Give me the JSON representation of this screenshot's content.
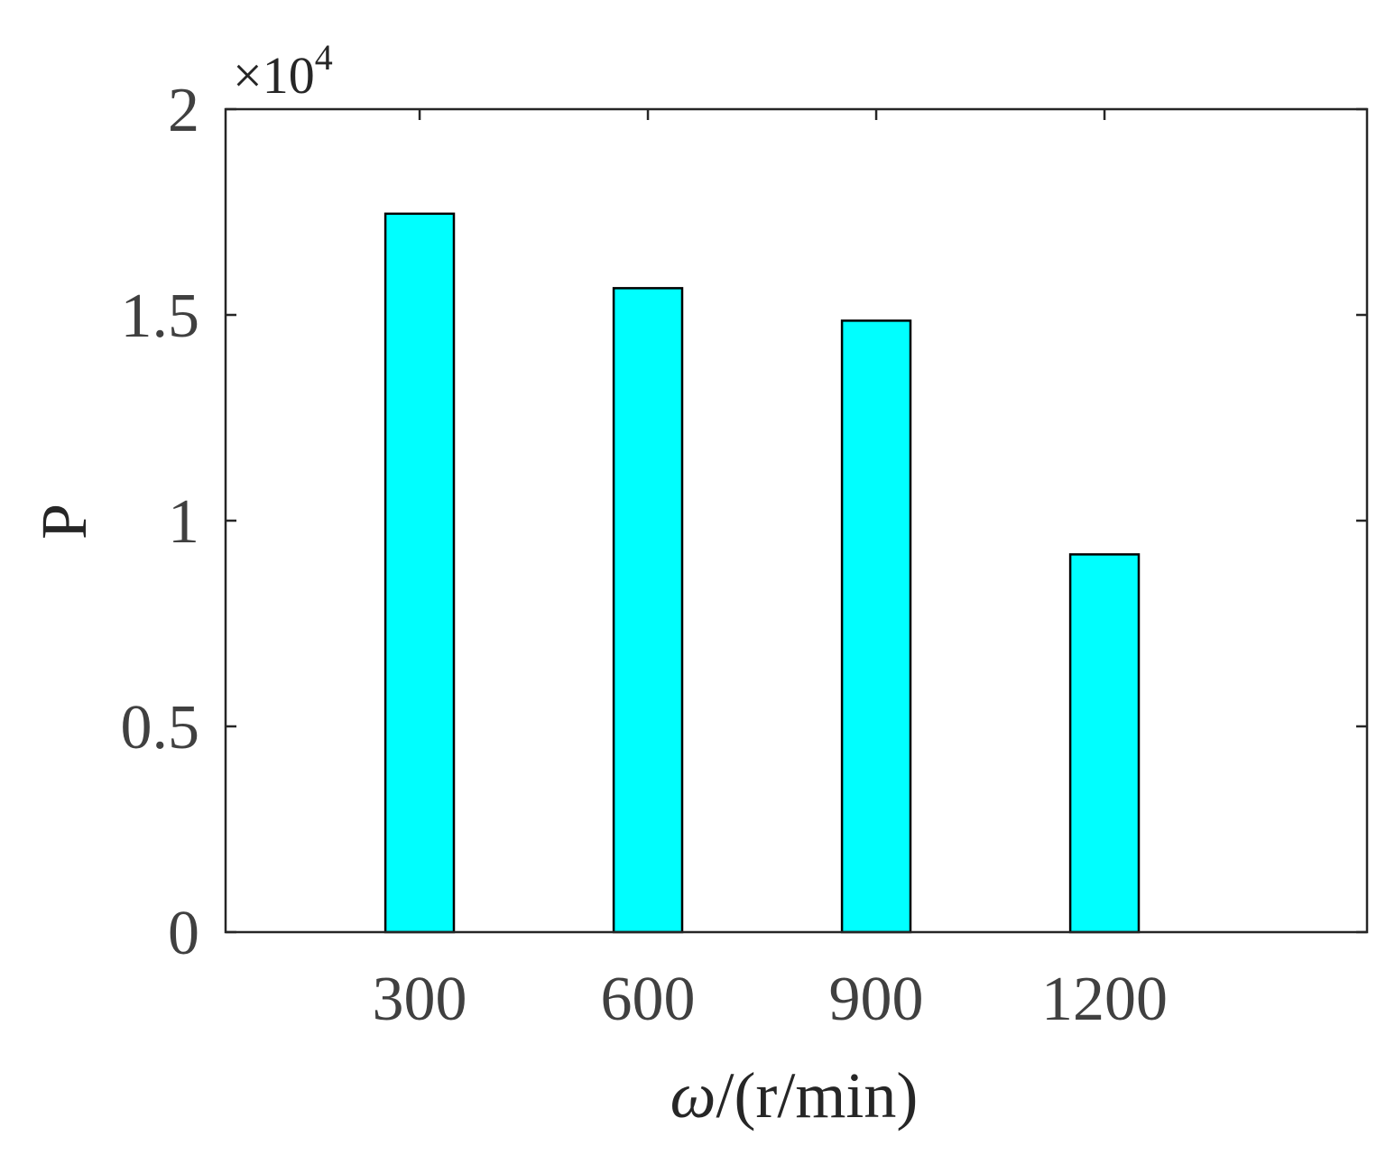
{
  "chart_data": {
    "type": "bar",
    "categories": [
      "300",
      "600",
      "900",
      "1200"
    ],
    "values": [
      17460,
      15650,
      14860,
      9180
    ],
    "title": "",
    "xlabel_symbol": "ω",
    "xlabel_rest": "/(r/min)",
    "ylabel": "P",
    "ylim": [
      0,
      20000
    ],
    "yticks": [
      0,
      5000,
      10000,
      15000,
      20000
    ],
    "ytick_labels": [
      "0",
      "0.5",
      "1",
      "1.5",
      "2"
    ],
    "exponent_base": "×10",
    "exponent_power": "4",
    "bar_color": "#00ffff",
    "edge_color": "#000000",
    "grid": false,
    "box": true
  }
}
